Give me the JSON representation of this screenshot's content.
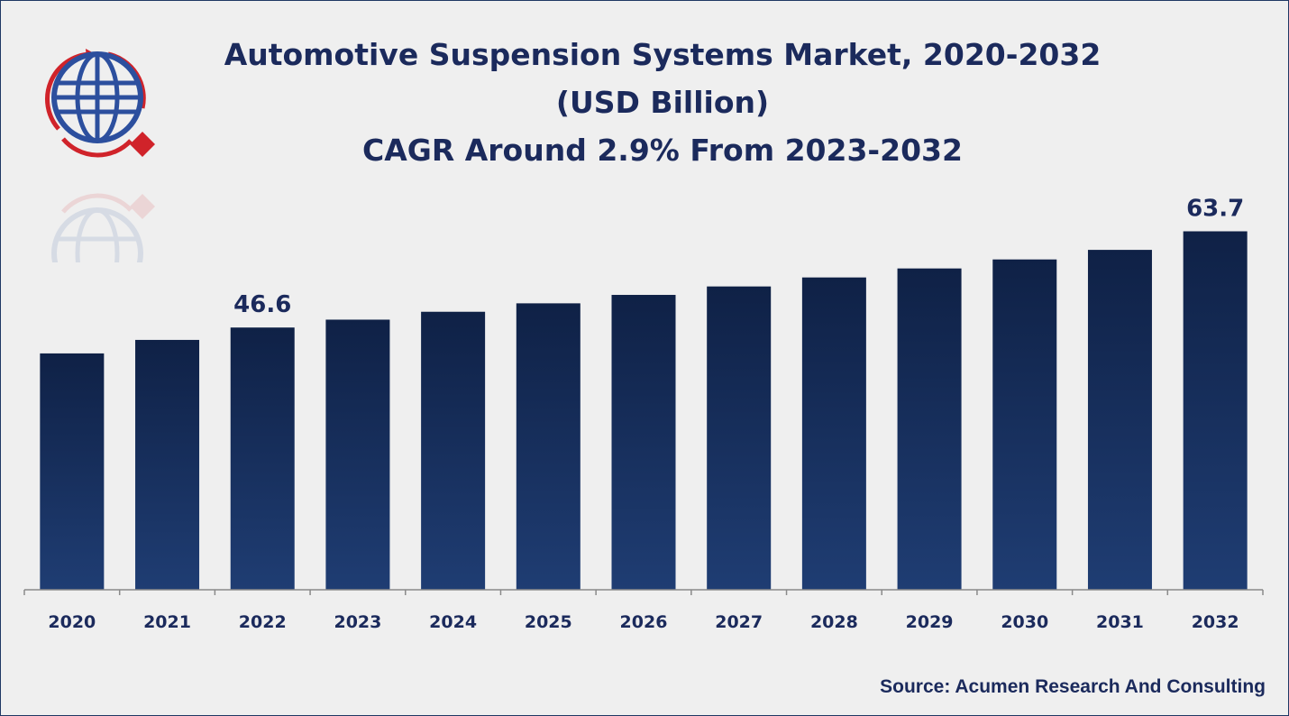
{
  "title": {
    "line1": "Automotive Suspension Systems Market, 2020-2032",
    "line2": "(USD Billion)",
    "line3": "CAGR Around 2.9% From 2023-2032"
  },
  "source": "Source: Acumen Research And Consulting",
  "logo_icon": "globe-arrows-icon",
  "colors": {
    "bar_top": "#0f2146",
    "bar_bottom": "#1f3d73",
    "text": "#1b2a5c",
    "logo_red": "#d0232a",
    "logo_blue": "#2c4f9e"
  },
  "chart_data": {
    "type": "bar",
    "title": "Automotive Suspension Systems Market, 2020-2032 (USD Billion)",
    "categories": [
      "2020",
      "2021",
      "2022",
      "2023",
      "2024",
      "2025",
      "2026",
      "2027",
      "2028",
      "2029",
      "2030",
      "2031",
      "2032"
    ],
    "values": [
      42.0,
      44.4,
      46.6,
      48.0,
      49.4,
      50.9,
      52.4,
      53.9,
      55.5,
      57.1,
      58.7,
      60.4,
      63.7
    ],
    "data_labels": [
      {
        "category": "2022",
        "label": "46.6"
      },
      {
        "category": "2032",
        "label": "63.7"
      }
    ],
    "ylim": [
      0,
      70
    ],
    "grid": false,
    "legend": "none"
  }
}
